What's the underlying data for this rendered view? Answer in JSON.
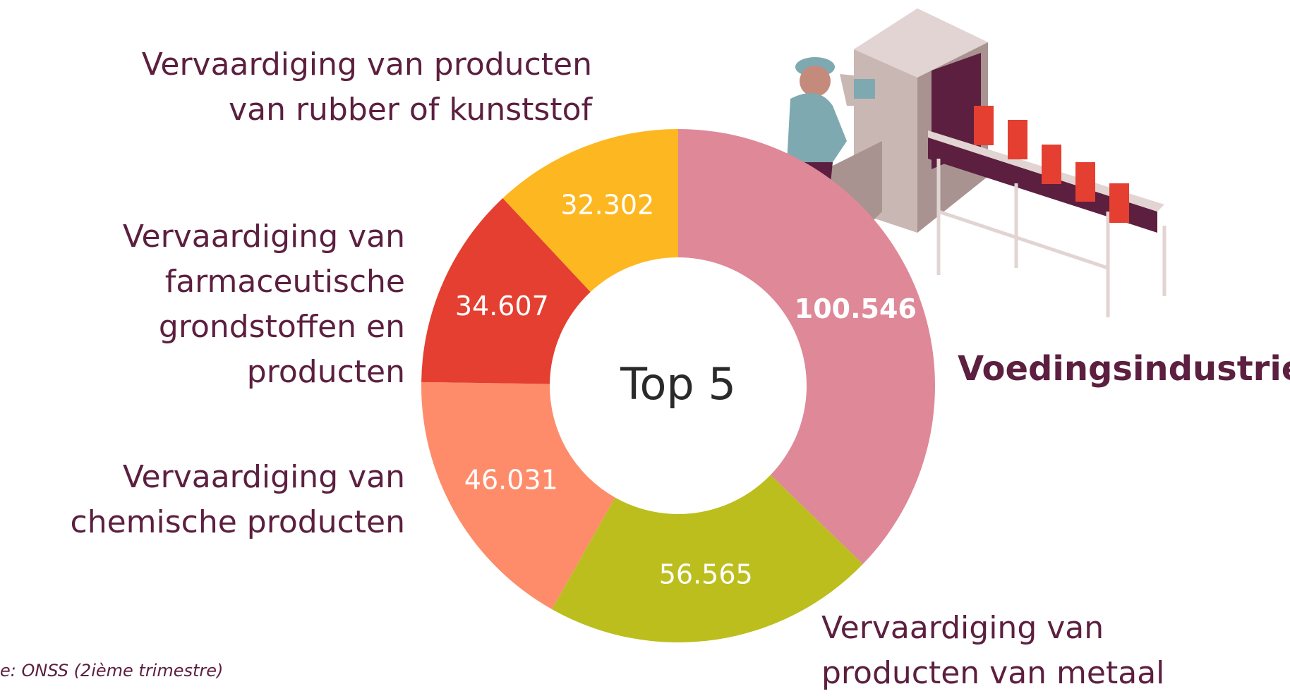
{
  "chart_data": {
    "type": "donut",
    "center_label": "Top 5",
    "categories": [
      "Voedingsindustrie",
      "Vervaardiging van\nproducten van metaal",
      "Vervaardiging van\nchemische producten",
      "Vervaardiging van\nfarmaceutische\ngrondstoffen en producten",
      "Vervaardiging van producten\nvan rubber of kunststof"
    ],
    "values": [
      100546,
      56565,
      46031,
      34607,
      32302
    ],
    "value_labels": [
      "100.546",
      "56.565",
      "46.031",
      "34.607",
      "32.302"
    ],
    "colors": [
      "#de8898",
      "#bcbe1e",
      "#fe8c6a",
      "#e43f30",
      "#fdb721"
    ],
    "source": "e: ONSS (2ième trimestre)"
  }
}
